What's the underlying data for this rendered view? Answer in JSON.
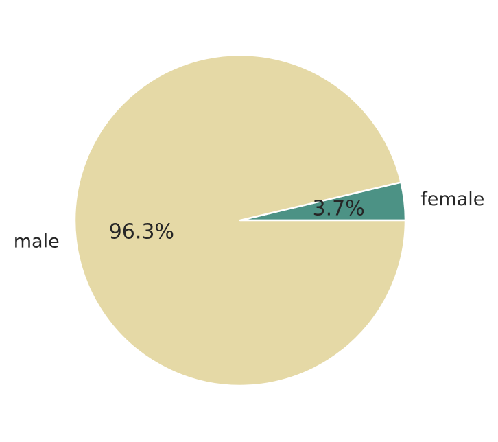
{
  "chart_data": {
    "type": "pie",
    "categories": [
      "female",
      "male"
    ],
    "values": [
      3.7,
      96.3
    ],
    "value_labels": [
      "3.7%",
      "96.3%"
    ],
    "colors": [
      "#4c9285",
      "#e5d9a6"
    ],
    "start_angle_deg": 0,
    "direction": "counterclockwise",
    "legend": "none"
  }
}
